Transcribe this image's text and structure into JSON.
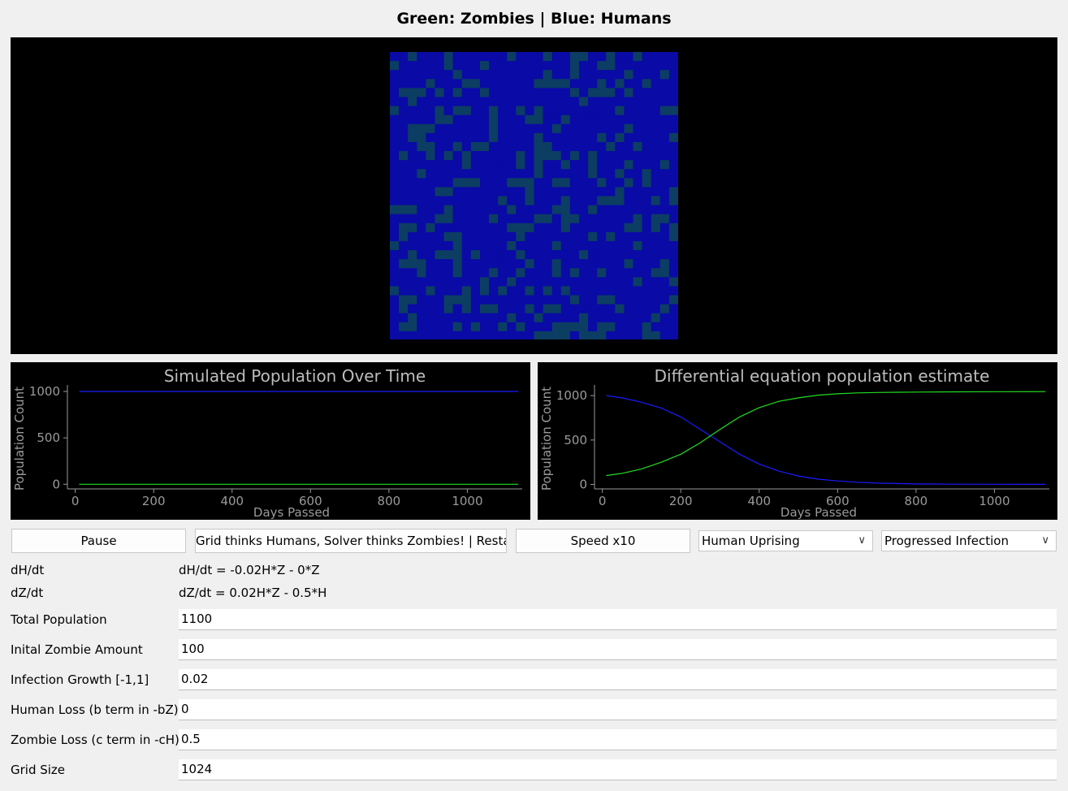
{
  "header": {
    "title": "Green: Zombies | Blue: Humans"
  },
  "colors": {
    "human": "#0a0aa6",
    "zombie": "#0c3d63",
    "plot_human": "#1a1aff",
    "plot_zombie": "#22dd22",
    "axis": "#9a9a9a"
  },
  "charts": {
    "left": {
      "title": "Simulated Population Over Time",
      "ylabel": "Population Count",
      "xlabel": "Days Passed"
    },
    "right": {
      "title": "Differential equation population estimate",
      "ylabel": "Population Count",
      "xlabel": "Days Passed"
    }
  },
  "chart_data": [
    {
      "type": "line",
      "title": "Simulated Population Over Time",
      "xlabel": "Days Passed",
      "ylabel": "Population Count",
      "xlim": [
        -20,
        1140
      ],
      "ylim": [
        -50,
        1070
      ],
      "xticks": [
        0,
        200,
        400,
        600,
        800,
        1000
      ],
      "yticks": [
        0,
        500,
        1000
      ],
      "grid": false,
      "series": [
        {
          "color": "#1a1aff",
          "x": [
            10,
            1130
          ],
          "values": [
            1000,
            1000
          ]
        },
        {
          "color": "#22dd22",
          "x": [
            10,
            1130
          ],
          "values": [
            0,
            0
          ]
        }
      ]
    },
    {
      "type": "line",
      "title": "Differential equation population estimate",
      "xlabel": "Days Passed",
      "ylabel": "Population Count",
      "xlim": [
        -20,
        1140
      ],
      "ylim": [
        -50,
        1120
      ],
      "xticks": [
        0,
        200,
        400,
        600,
        800,
        1000
      ],
      "yticks": [
        0,
        500,
        1000
      ],
      "grid": false,
      "series": [
        {
          "color": "#1a1aff",
          "x": [
            10,
            50,
            100,
            150,
            200,
            250,
            300,
            350,
            400,
            450,
            500,
            550,
            600,
            650,
            700,
            750,
            800,
            900,
            1000,
            1130
          ],
          "values": [
            1000,
            975,
            925,
            860,
            760,
            620,
            480,
            340,
            230,
            150,
            95,
            60,
            40,
            25,
            15,
            10,
            6,
            3,
            2,
            1
          ]
        },
        {
          "color": "#22dd22",
          "x": [
            10,
            50,
            100,
            150,
            200,
            250,
            300,
            350,
            400,
            450,
            500,
            550,
            600,
            650,
            700,
            750,
            800,
            900,
            1000,
            1130
          ],
          "values": [
            100,
            125,
            175,
            250,
            340,
            470,
            620,
            760,
            865,
            935,
            975,
            1005,
            1020,
            1030,
            1035,
            1038,
            1040,
            1042,
            1044,
            1045
          ]
        }
      ]
    }
  ],
  "controls": {
    "pause_label": "Pause",
    "restart_label": "Grid thinks Humans, Solver thinks Zombies! | Restart",
    "speed_label": "Speed x10",
    "scenario_value": "Human Uprising",
    "infection_value": "Progressed Infection"
  },
  "equations": {
    "dh_label": "dH/dt",
    "dh_value": "dH/dt = -0.02H*Z - 0*Z",
    "dz_label": "dZ/dt",
    "dz_value": "dZ/dt = 0.02H*Z - 0.5*H"
  },
  "params": [
    {
      "label": "Total Population",
      "value": "1100"
    },
    {
      "label": "Inital Zombie Amount",
      "value": "100"
    },
    {
      "label": "Infection Growth [-1,1]",
      "value": "0.02"
    },
    {
      "label": "Human Loss (b term in -bZ)",
      "value": "0"
    },
    {
      "label": "Zombie Loss (c term in -cH)",
      "value": "0.5"
    },
    {
      "label": "Grid Size",
      "value": "1024"
    }
  ]
}
